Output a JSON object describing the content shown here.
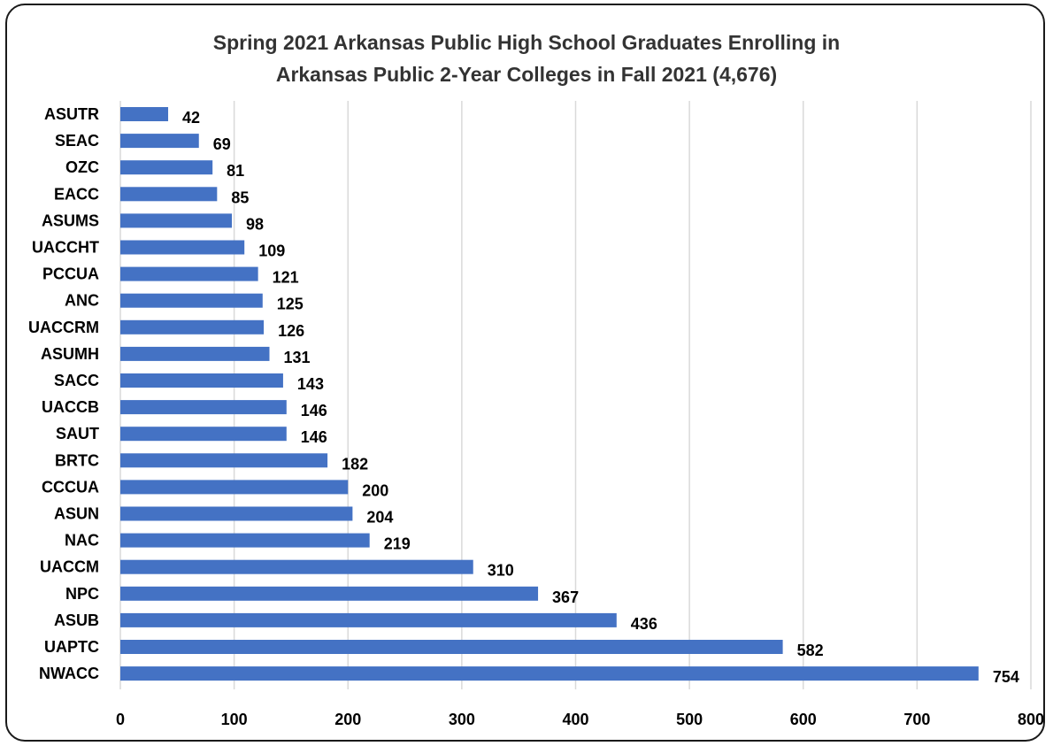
{
  "chart_data": {
    "type": "bar",
    "orientation": "horizontal",
    "title_line1": "Spring 2021 Arkansas Public High School Graduates Enrolling in",
    "title_line2": "Arkansas Public 2-Year Colleges in Fall 2021 (4,676)",
    "categories": [
      "ASUTR",
      "SEAC",
      "OZC",
      "EACC",
      "ASUMS",
      "UACCHT",
      "PCCUA",
      "ANC",
      "UACCRM",
      "ASUMH",
      "SACC",
      "UACCB",
      "SAUT",
      "BRTC",
      "CCCUA",
      "ASUN",
      "NAC",
      "UACCM",
      "NPC",
      "ASUB",
      "UAPTC",
      "NWACC"
    ],
    "values": [
      42,
      69,
      81,
      85,
      98,
      109,
      121,
      125,
      126,
      131,
      143,
      146,
      146,
      182,
      200,
      204,
      219,
      310,
      367,
      436,
      582,
      754
    ],
    "xlim": [
      0,
      800
    ],
    "xticks": [
      0,
      100,
      200,
      300,
      400,
      500,
      600,
      700,
      800
    ],
    "grid": "vertical",
    "legend": "none",
    "bar_color": "#4472C4",
    "grid_color": "#D9D9D9"
  }
}
